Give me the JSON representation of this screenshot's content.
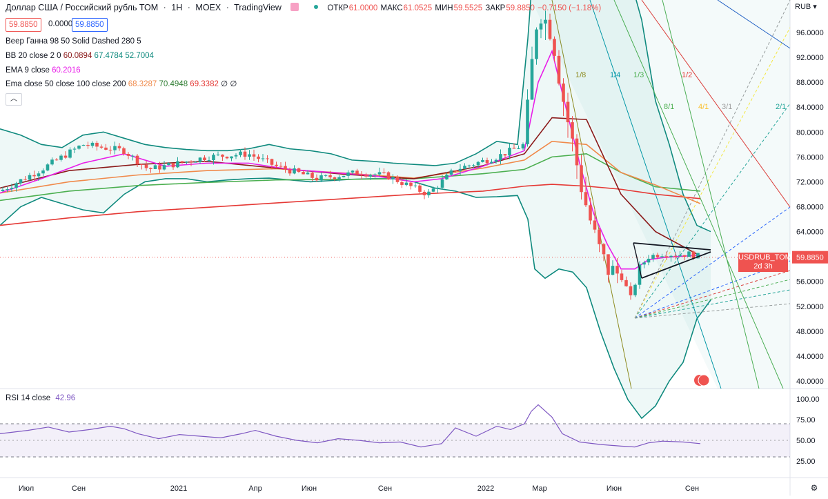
{
  "header": {
    "instrument": "Доллар США / Российский рубль ТОМ",
    "sep1": "·",
    "interval": "1H",
    "sep2": "·",
    "exchange": "MOEX",
    "sep3": "·",
    "platform": "TradingView",
    "open_label": "ОТКР",
    "open": "61.0000",
    "high_label": "МАКС",
    "high": "61.0525",
    "low_label": "МИН",
    "low": "59.5525",
    "close_label": "ЗАКР",
    "close": "59.8850",
    "change": "−0.7150 (−1.18%)",
    "ask": "59.8850",
    "spread": "0.0000",
    "bid": "59.8850"
  },
  "indicators": {
    "gann": "Веер Ганна 98 50 Solid Dashed 280 5",
    "bb_label": "BB 20 close 2 0",
    "bb_values": [
      "60.0894",
      "67.4784",
      "52.7004"
    ],
    "ema9_label": "EMA 9 close",
    "ema9_value": "60.2016",
    "ema_label": "Ema close 50 close 100 close 200",
    "ema_values": [
      "68.3287",
      "70.4948",
      "69.3382",
      "∅",
      "∅"
    ],
    "rsi_label": "RSI 14 close",
    "rsi_value": "42.96"
  },
  "price_axis": {
    "currency": "RUB",
    "ticks": [
      "96.0000",
      "92.0000",
      "88.0000",
      "84.0000",
      "80.0000",
      "76.0000",
      "72.0000",
      "68.0000",
      "64.0000",
      "60.0000",
      "56.0000",
      "52.0000",
      "48.0000",
      "44.0000",
      "40.0000"
    ],
    "current_symbol": "USDRUB_TOM",
    "current_price": "59.8850",
    "countdown": "2d 3h"
  },
  "rsi_axis": {
    "ticks": [
      "100.00",
      "75.00",
      "50.00",
      "25.00"
    ]
  },
  "time_axis": {
    "ticks": [
      "Июл",
      "Сен",
      "2021",
      "Апр",
      "Июн",
      "Сен",
      "2022",
      "Мар",
      "Июн",
      "Сен"
    ]
  },
  "gann_labels": [
    "1/8",
    "1/4",
    "1/3",
    "1/2",
    "8/1",
    "4/1",
    "3/1",
    "2/1"
  ],
  "colors": {
    "up": "#26a69a",
    "down": "#ef5350",
    "bb_basis": "#8b1a1a",
    "bb_band": "#0f8a7e",
    "ema9": "#e91ee9",
    "ema50": "#f08a4b",
    "ema100": "#4caf50",
    "ema200": "#e53935",
    "rsi": "#7e57c2"
  },
  "chart_data": {
    "type": "line",
    "title": "Доллар США / Российский рубль ТОМ · 1H · MOEX",
    "ylabel": "RUB",
    "ylim": [
      38.5,
      100
    ],
    "x_ticks": [
      "Июл",
      "Сен",
      "2021",
      "Апр",
      "Июн",
      "Сен",
      "2022",
      "Мар",
      "Июн",
      "Сен"
    ],
    "series": [
      {
        "name": "USDRUB_TOM",
        "x": [
          "Июл",
          "Сен",
          "2021",
          "Апр",
          "Июн",
          "Сен",
          "2022",
          "Мар",
          "Июн",
          "Сен"
        ],
        "values": [
          70.2,
          74.0,
          74.5,
          75.5,
          72.8,
          72.5,
          75.5,
          100.0,
          55.5,
          59.885
        ]
      },
      {
        "name": "EMA 9",
        "x": [
          "Июл",
          "Сен",
          "2021",
          "Апр",
          "Июн",
          "Сен",
          "2022",
          "Мар",
          "Июн",
          "Сен"
        ],
        "values": [
          70.8,
          73.8,
          74.3,
          74.9,
          72.9,
          72.2,
          75.6,
          95.0,
          57.8,
          60.2016
        ]
      },
      {
        "name": "EMA 200",
        "x": [
          "Июл",
          "Сен",
          "2021",
          "Апр",
          "Июн",
          "Сен",
          "2022",
          "Мар",
          "Июн",
          "Сен"
        ],
        "values": [
          65.0,
          66.3,
          67.2,
          67.9,
          68.6,
          69.4,
          70.5,
          71.6,
          70.4,
          69.3382
        ]
      }
    ],
    "rsi": {
      "name": "RSI 14 close",
      "ylim": [
        20,
        100
      ],
      "levels": [
        70,
        30
      ],
      "last": 42.96
    }
  }
}
